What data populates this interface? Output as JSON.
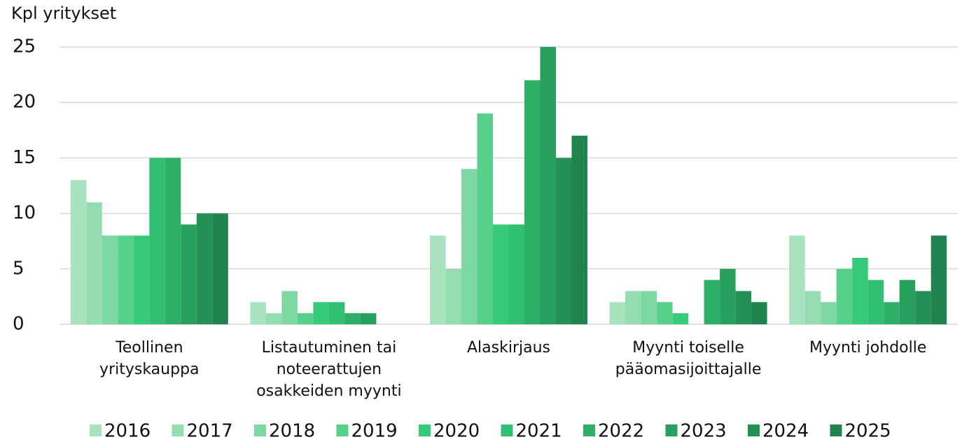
{
  "chart_data": {
    "type": "bar",
    "y_label": "Kpl yritykset",
    "categories": [
      "Teollinen\nyrityskauppa",
      "Listautuminen tai\nnoteerattujen\nosakkeiden myynti",
      "Alaskirjaus",
      "Myynti toiselle\npääomasijoittajalle",
      "Myynti johdolle"
    ],
    "series": [
      {
        "name": "2016",
        "color": "#a8e2bf",
        "values": [
          13,
          2,
          8,
          2,
          8
        ]
      },
      {
        "name": "2017",
        "color": "#94ddb1",
        "values": [
          11,
          1,
          5,
          3,
          3
        ]
      },
      {
        "name": "2018",
        "color": "#7dd8a1",
        "values": [
          8,
          3,
          14,
          3,
          2
        ]
      },
      {
        "name": "2019",
        "color": "#56d18b",
        "values": [
          8,
          1,
          19,
          2,
          5
        ]
      },
      {
        "name": "2020",
        "color": "#36cb79",
        "values": [
          8,
          2,
          9,
          1,
          6
        ]
      },
      {
        "name": "2021",
        "color": "#31bf71",
        "values": [
          15,
          2,
          9,
          0,
          4
        ]
      },
      {
        "name": "2022",
        "color": "#2cb067",
        "values": [
          15,
          1,
          22,
          4,
          2
        ]
      },
      {
        "name": "2023",
        "color": "#28a05e",
        "values": [
          9,
          1,
          25,
          5,
          4
        ]
      },
      {
        "name": "2024",
        "color": "#239056",
        "values": [
          10,
          0,
          15,
          3,
          3
        ]
      },
      {
        "name": "2025",
        "color": "#1f8450",
        "values": [
          10,
          0,
          17,
          2,
          8
        ]
      }
    ],
    "ylim": [
      0,
      25
    ],
    "yticks": [
      0,
      5,
      10,
      15,
      20,
      25
    ],
    "grid": true,
    "legend": "bottom"
  }
}
